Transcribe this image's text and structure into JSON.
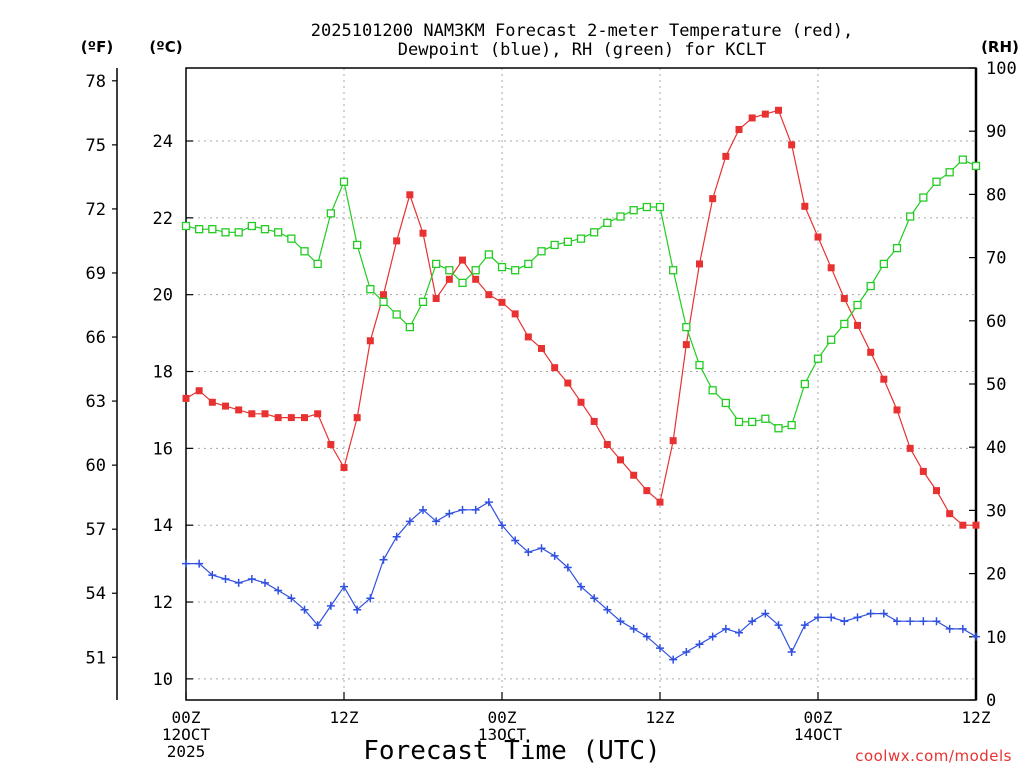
{
  "chart_data": {
    "type": "line",
    "title_line1": "2025101200 NAM3KM Forecast 2-meter Temperature (red),",
    "title_line2": "Dewpoint (blue), RH (green) for KCLT",
    "xlabel": "Forecast Time (UTC)",
    "unit_f": "(ºF)",
    "unit_c": "(ºC)",
    "unit_rh": "(RH)",
    "credit": "coolwx.com/models",
    "x_hours": [
      0,
      1,
      2,
      3,
      4,
      5,
      6,
      7,
      8,
      9,
      10,
      11,
      12,
      13,
      14,
      15,
      16,
      17,
      18,
      19,
      20,
      21,
      22,
      23,
      24,
      25,
      26,
      27,
      28,
      29,
      30,
      31,
      32,
      33,
      34,
      35,
      36,
      37,
      38,
      39,
      40,
      41,
      42,
      43,
      44,
      45,
      46,
      47,
      48,
      49,
      50,
      51,
      52,
      53,
      54,
      55,
      56,
      57,
      58,
      59,
      60
    ],
    "xlim": [
      0,
      60
    ],
    "ylim_c": [
      9.45,
      25.9
    ],
    "ylim_rh": [
      0,
      100
    ],
    "ylim_f": [
      49.0,
      78.6
    ],
    "c_ticks": [
      "10",
      "12",
      "14",
      "16",
      "18",
      "20",
      "22",
      "24"
    ],
    "f_ticks": [
      "51",
      "54",
      "57",
      "60",
      "63",
      "66",
      "69",
      "72",
      "75",
      "78"
    ],
    "rh_ticks": [
      "0",
      "10",
      "20",
      "30",
      "40",
      "50",
      "60",
      "70",
      "80",
      "90",
      "100"
    ],
    "x_ticks": [
      {
        "hour": 0,
        "lines": [
          "00Z",
          "12OCT",
          "2025"
        ]
      },
      {
        "hour": 12,
        "lines": [
          "12Z"
        ]
      },
      {
        "hour": 24,
        "lines": [
          "00Z",
          "13OCT"
        ]
      },
      {
        "hour": 36,
        "lines": [
          "12Z"
        ]
      },
      {
        "hour": 48,
        "lines": [
          "00Z",
          "14OCT"
        ]
      },
      {
        "hour": 60,
        "lines": [
          "12Z"
        ]
      }
    ],
    "series": [
      {
        "name": "2-meter Temperature",
        "unit": "°C",
        "color": "#e83232",
        "marker": "filled-square",
        "values": [
          17.3,
          17.5,
          17.2,
          17.1,
          17.0,
          16.9,
          16.9,
          16.8,
          16.8,
          16.8,
          16.9,
          16.1,
          15.5,
          16.8,
          18.8,
          20.0,
          21.4,
          22.6,
          21.6,
          19.9,
          20.4,
          20.9,
          20.4,
          20.0,
          19.8,
          19.5,
          18.9,
          18.6,
          18.1,
          17.7,
          17.2,
          16.7,
          16.1,
          15.7,
          15.3,
          14.9,
          14.6,
          16.2,
          18.7,
          20.8,
          22.5,
          23.6,
          24.3,
          24.6,
          24.7,
          24.8,
          23.9,
          22.3,
          21.5,
          20.7,
          19.9,
          19.2,
          18.5,
          17.8,
          17.0,
          16.0,
          15.4,
          14.9,
          14.3,
          14.0,
          14.0
        ]
      },
      {
        "name": "Dewpoint",
        "unit": "°C",
        "color": "#3050e0",
        "marker": "plus",
        "values": [
          13.0,
          13.0,
          12.7,
          12.6,
          12.5,
          12.6,
          12.5,
          12.3,
          12.1,
          11.8,
          11.4,
          11.9,
          12.4,
          11.8,
          12.1,
          13.1,
          13.7,
          14.1,
          14.4,
          14.1,
          14.3,
          14.4,
          14.4,
          14.6,
          14.0,
          13.6,
          13.3,
          13.4,
          13.2,
          12.9,
          12.4,
          12.1,
          11.8,
          11.5,
          11.3,
          11.1,
          10.8,
          10.5,
          10.7,
          10.9,
          11.1,
          11.3,
          11.2,
          11.5,
          11.7,
          11.4,
          10.7,
          11.4,
          11.6,
          11.6,
          11.5,
          11.6,
          11.7,
          11.7,
          11.5,
          11.5,
          11.5,
          11.5,
          11.3,
          11.3,
          11.1
        ]
      },
      {
        "name": "Relative Humidity",
        "unit": "%",
        "color": "#22cc22",
        "marker": "open-square",
        "values": [
          75,
          74.5,
          74.5,
          74,
          74,
          75,
          74.5,
          74,
          73,
          71,
          69,
          77,
          82,
          72,
          65,
          63,
          61,
          59,
          63,
          69,
          68,
          66,
          68,
          70.5,
          68.5,
          68,
          69,
          71,
          72,
          72.5,
          73,
          74,
          75.5,
          76.5,
          77.5,
          78,
          78,
          68,
          59,
          53,
          49,
          47,
          44,
          44,
          44.5,
          43,
          43.5,
          50,
          54,
          57,
          59.5,
          62.5,
          65.5,
          69,
          71.5,
          76.5,
          79.5,
          82,
          83.5,
          85.5,
          84.5
        ]
      }
    ]
  }
}
